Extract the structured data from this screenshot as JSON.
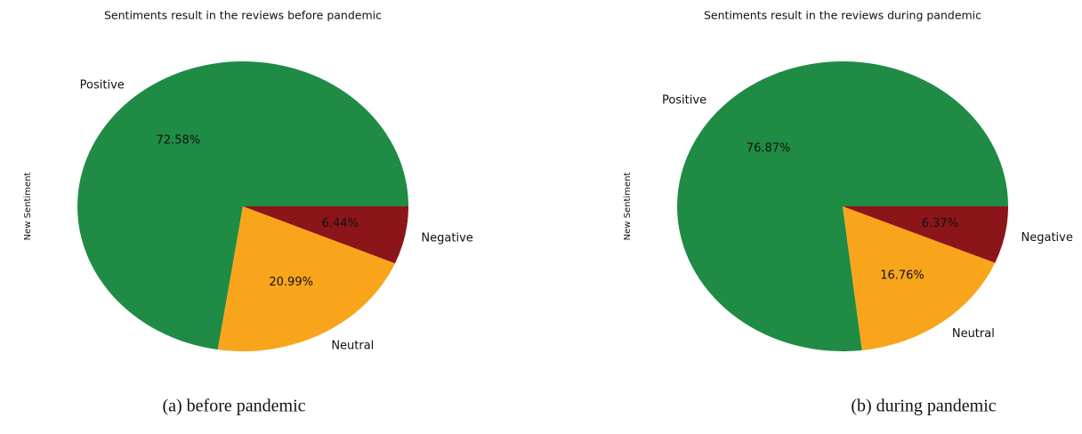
{
  "chart_data": [
    {
      "type": "pie",
      "title": "Sentiments result in the reviews before pandemic",
      "ylabel": "New Sentiment",
      "categories": [
        "Positive",
        "Neutral",
        "Negative"
      ],
      "values": [
        72.58,
        20.99,
        6.44
      ],
      "value_labels": [
        "72.58%",
        "20.99%",
        "6.44%"
      ],
      "colors": [
        "#1f8b45",
        "#f9a51b",
        "#8b1519"
      ],
      "caption": "(a) before pandemic"
    },
    {
      "type": "pie",
      "title": "Sentiments result in the reviews during pandemic",
      "ylabel": "New Sentiment",
      "categories": [
        "Positive",
        "Neutral",
        "Negative"
      ],
      "values": [
        76.87,
        16.76,
        6.37
      ],
      "value_labels": [
        "76.87%",
        "16.76%",
        "6.37%"
      ],
      "colors": [
        "#1f8b45",
        "#f9a51b",
        "#8b1519"
      ],
      "caption": "(b) during pandemic"
    }
  ]
}
